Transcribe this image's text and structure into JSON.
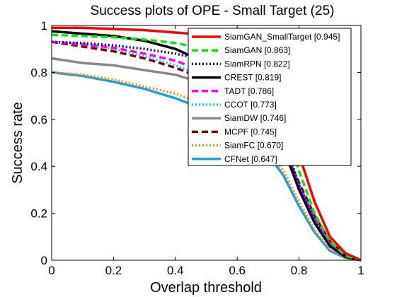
{
  "chart_data": {
    "type": "line",
    "title": "Success plots of OPE - Small Target (25)",
    "xlabel": "Overlap threshold",
    "ylabel": "Success rate",
    "xlim": [
      0,
      1
    ],
    "ylim": [
      0,
      1
    ],
    "xticks": [
      "0",
      "0.2",
      "0.4",
      "0.6",
      "0.8",
      "1"
    ],
    "yticks": [
      "0",
      "0.2",
      "0.4",
      "0.6",
      "0.8",
      "1"
    ],
    "grid": false,
    "legend_position": "top-right",
    "x": [
      0,
      0.1,
      0.2,
      0.3,
      0.4,
      0.5,
      0.6,
      0.7,
      0.75,
      0.8,
      0.85,
      0.9,
      0.95,
      1.0
    ],
    "series": [
      {
        "name": "SiamGAN_SmallTarget [0.945]",
        "color": "#ff0000",
        "style": "solid",
        "values": [
          0.99,
          0.99,
          0.985,
          0.98,
          0.97,
          0.96,
          0.93,
          0.85,
          0.72,
          0.45,
          0.25,
          0.1,
          0.03,
          0.0
        ]
      },
      {
        "name": "SiamGAN [0.863]",
        "color": "#00ee00",
        "style": "dashed",
        "values": [
          0.96,
          0.955,
          0.95,
          0.94,
          0.925,
          0.9,
          0.84,
          0.72,
          0.6,
          0.38,
          0.2,
          0.08,
          0.02,
          0.0
        ]
      },
      {
        "name": "SiamRPN [0.822]",
        "color": "#0000cc",
        "style": "dotted",
        "values": [
          0.93,
          0.925,
          0.915,
          0.9,
          0.88,
          0.85,
          0.78,
          0.65,
          0.52,
          0.32,
          0.17,
          0.06,
          0.015,
          0.0
        ]
      },
      {
        "name": "CREST [0.819]",
        "color": "#000000",
        "style": "solid",
        "values": [
          0.975,
          0.965,
          0.955,
          0.935,
          0.9,
          0.84,
          0.74,
          0.6,
          0.48,
          0.3,
          0.16,
          0.06,
          0.015,
          0.0
        ]
      },
      {
        "name": "TADT [0.786]",
        "color": "#ff00ff",
        "style": "dashed",
        "values": [
          0.93,
          0.92,
          0.905,
          0.88,
          0.85,
          0.8,
          0.72,
          0.6,
          0.49,
          0.32,
          0.18,
          0.07,
          0.02,
          0.0
        ]
      },
      {
        "name": "CCOT [0.773]",
        "color": "#00dddd",
        "style": "dotted",
        "values": [
          0.93,
          0.92,
          0.9,
          0.87,
          0.83,
          0.78,
          0.7,
          0.58,
          0.47,
          0.31,
          0.17,
          0.06,
          0.015,
          0.0
        ]
      },
      {
        "name": "SiamDW [0.746]",
        "color": "#888888",
        "style": "solid",
        "values": [
          0.86,
          0.84,
          0.83,
          0.81,
          0.79,
          0.75,
          0.67,
          0.56,
          0.46,
          0.31,
          0.17,
          0.065,
          0.015,
          0.0
        ]
      },
      {
        "name": "MCPF [0.745]",
        "color": "#880000",
        "style": "dashed",
        "values": [
          0.93,
          0.91,
          0.89,
          0.86,
          0.82,
          0.77,
          0.69,
          0.57,
          0.47,
          0.33,
          0.19,
          0.08,
          0.02,
          0.0
        ]
      },
      {
        "name": "SiamFC [0.670]",
        "color": "#ff8c00",
        "style": "dotted",
        "values": [
          0.8,
          0.79,
          0.77,
          0.74,
          0.71,
          0.66,
          0.58,
          0.47,
          0.38,
          0.25,
          0.13,
          0.045,
          0.01,
          0.0
        ]
      },
      {
        "name": "CFNet [0.647]",
        "color": "#1ca0e0",
        "style": "solid",
        "values": [
          0.8,
          0.785,
          0.76,
          0.73,
          0.69,
          0.64,
          0.56,
          0.45,
          0.36,
          0.23,
          0.12,
          0.04,
          0.01,
          0.0
        ]
      }
    ]
  }
}
